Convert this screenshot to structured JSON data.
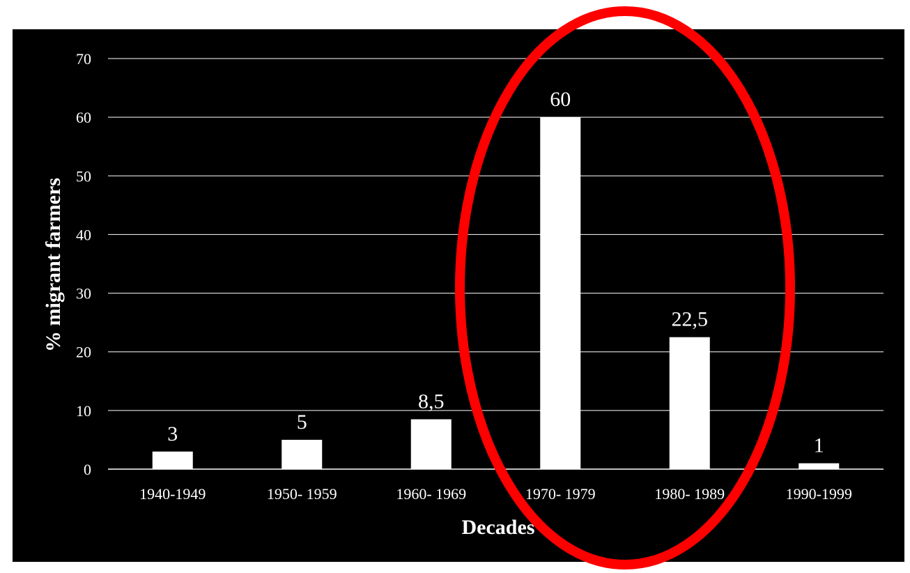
{
  "chart_data": {
    "type": "bar",
    "categories": [
      "1940-1949",
      "1950- 1959",
      "1960- 1969",
      "1970- 1979",
      "1980- 1989",
      "1990-1999"
    ],
    "values": [
      3,
      5,
      8.5,
      60,
      22.5,
      1
    ],
    "data_labels": [
      "3",
      "5",
      "8,5",
      "60",
      "22,5",
      "1"
    ],
    "xlabel": "Decades",
    "ylabel": "% migrant farmers",
    "ylim": [
      0,
      70
    ],
    "yticks": [
      0,
      10,
      20,
      30,
      40,
      50,
      60,
      70
    ],
    "grid": true,
    "colors": {
      "background": "#000000",
      "bars": "#ffffff",
      "gridlines": "#ffffff",
      "text": "#ffffff",
      "highlight": "#ff0000"
    },
    "annotation": {
      "shape": "ellipse",
      "highlights": [
        "1970- 1979",
        "1980- 1989"
      ],
      "color": "#ff0000"
    }
  }
}
